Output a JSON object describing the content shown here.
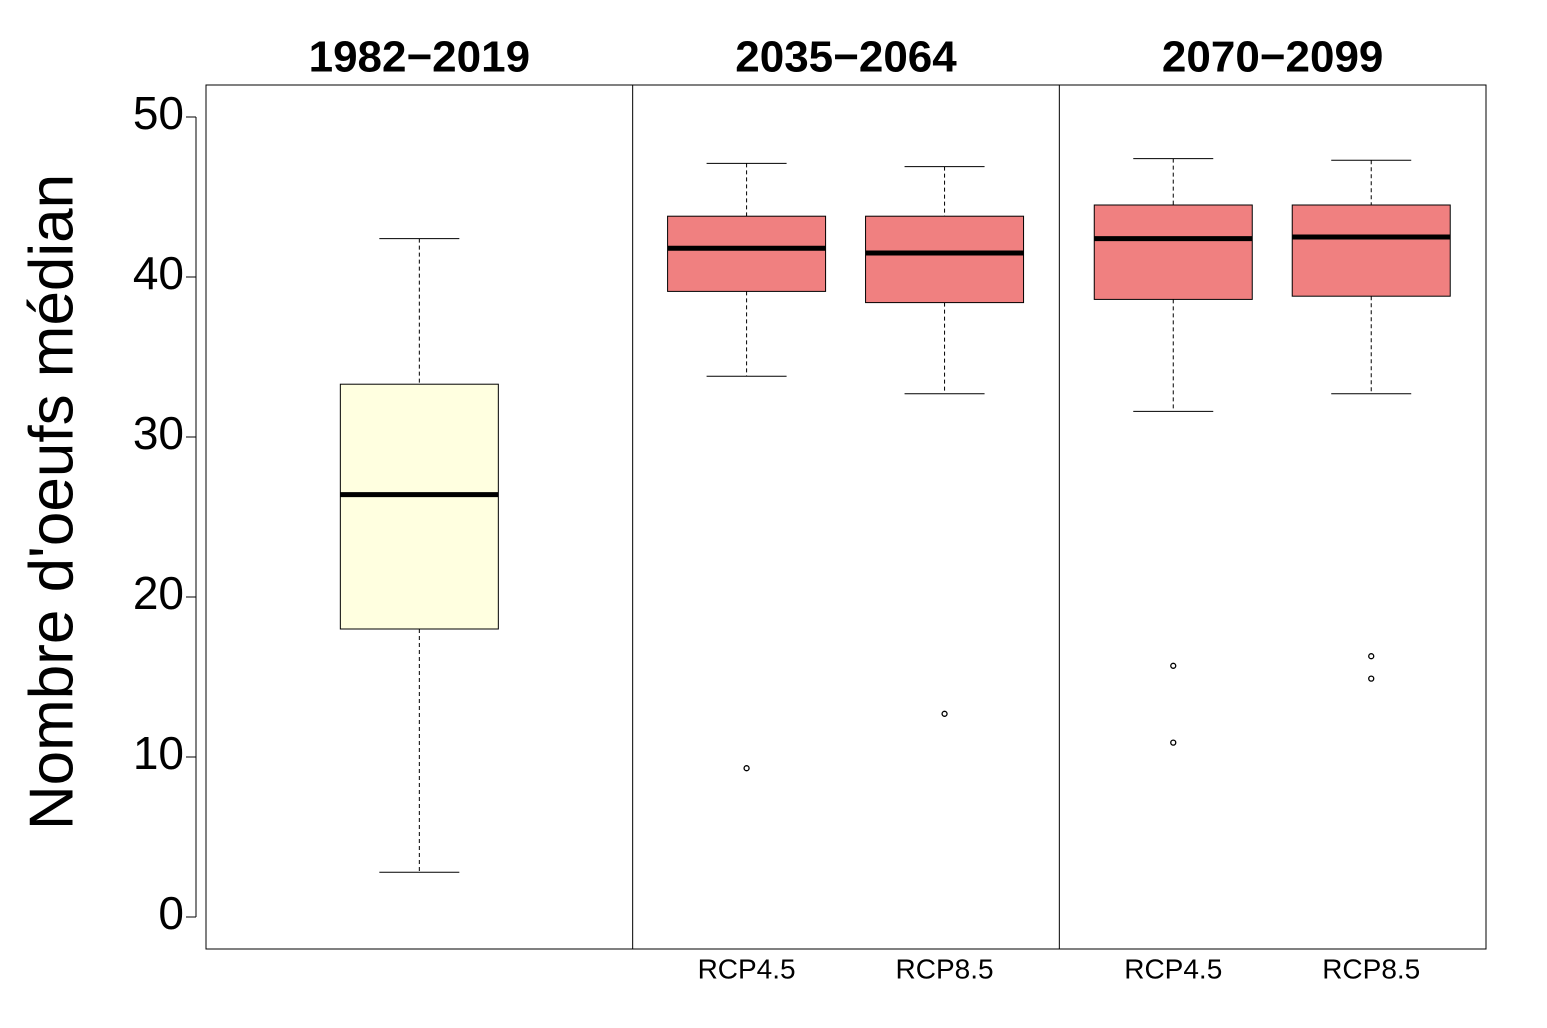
{
  "chart_data": {
    "type": "box",
    "ylabel": "Nombre d'oeufs médian",
    "ylim": [
      -2,
      52
    ],
    "yticks": [
      0,
      10,
      20,
      30,
      40,
      50
    ],
    "panels": [
      {
        "title": "1982−2019",
        "categories": [
          null
        ],
        "color": "#ffffe0",
        "boxes": [
          {
            "low": 2.8,
            "q1": 18.0,
            "median": 26.4,
            "q3": 33.3,
            "high": 42.4,
            "outliers": []
          }
        ]
      },
      {
        "title": "2035−2064",
        "categories": [
          "RCP4.5",
          "RCP8.5"
        ],
        "color": "#f08080",
        "boxes": [
          {
            "low": 33.8,
            "q1": 39.1,
            "median": 41.8,
            "q3": 43.8,
            "high": 47.1,
            "outliers": [
              9.3
            ]
          },
          {
            "low": 32.7,
            "q1": 38.4,
            "median": 41.5,
            "q3": 43.8,
            "high": 46.9,
            "outliers": [
              12.7
            ]
          }
        ]
      },
      {
        "title": "2070−2099",
        "categories": [
          "RCP4.5",
          "RCP8.5"
        ],
        "color": "#f08080",
        "boxes": [
          {
            "low": 31.6,
            "q1": 38.6,
            "median": 42.4,
            "q3": 44.5,
            "high": 47.4,
            "outliers": [
              15.7,
              10.9
            ]
          },
          {
            "low": 32.7,
            "q1": 38.8,
            "median": 42.5,
            "q3": 44.5,
            "high": 47.3,
            "outliers": [
              16.3,
              14.9
            ]
          }
        ]
      }
    ]
  }
}
